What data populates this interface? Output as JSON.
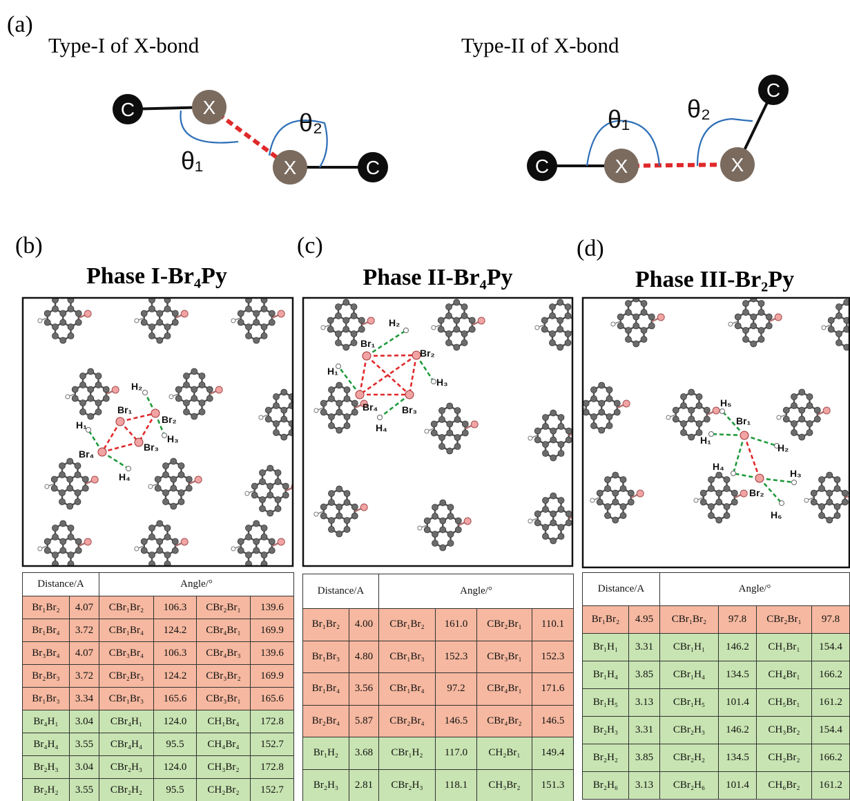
{
  "panel_a": {
    "label": "(a)",
    "type_i": {
      "title": "Type-I of X-bond",
      "atoms": [
        "C",
        "X",
        "X",
        "C"
      ],
      "angles": [
        "θ₁",
        "θ₂"
      ]
    },
    "type_ii": {
      "title": "Type-II of X-bond",
      "atoms": [
        "C",
        "X",
        "X",
        "C"
      ],
      "angles": [
        "θ₁",
        "θ₂"
      ]
    }
  },
  "panels": [
    {
      "label": "(b)",
      "title": "Phase I-Br₄Py",
      "atoms": [
        "H₂",
        "Br₁",
        "Br₂",
        "H₁",
        "H₃",
        "Br₃",
        "Br₄",
        "H₄"
      ],
      "table": {
        "headers": [
          "Distance/A",
          "Angle/°"
        ],
        "rows": [
          {
            "color": "#f6b8a0",
            "cells": [
              "Br₁Br₂",
              "4.07",
              "CBr₁Br₂",
              "106.3",
              "CBr₂Br₁",
              "139.6"
            ]
          },
          {
            "color": "#f6b8a0",
            "cells": [
              "Br₁Br₄",
              "3.72",
              "CBr₁Br₄",
              "124.2",
              "CBr₄Br₁",
              "169.9"
            ]
          },
          {
            "color": "#f6b8a0",
            "cells": [
              "Br₃Br₄",
              "4.07",
              "CBr₃Br₄",
              "106.3",
              "CBr₄Br₃",
              "139.6"
            ]
          },
          {
            "color": "#f6b8a0",
            "cells": [
              "Br₂Br₃",
              "3.72",
              "CBr₂Br₃",
              "124.2",
              "CBr₃Br₂",
              "169.9"
            ]
          },
          {
            "color": "#f6b8a0",
            "cells": [
              "Br₁Br₃",
              "3.34",
              "CBr₁Br₃",
              "165.6",
              "CBr₃Br₁",
              "165.6"
            ]
          },
          {
            "color": "#c8e4b2",
            "cells": [
              "Br₄H₁",
              "3.04",
              "CBr₄H₁",
              "124.0",
              "CH₁Br₄",
              "172.8"
            ]
          },
          {
            "color": "#c8e4b2",
            "cells": [
              "Br₄H₄",
              "3.55",
              "CBr₄H₄",
              "95.5",
              "CH₄Br₄",
              "152.7"
            ]
          },
          {
            "color": "#c8e4b2",
            "cells": [
              "Br₂H₃",
              "3.04",
              "CBr₂H₃",
              "124.0",
              "CH₃Br₂",
              "172.8"
            ]
          },
          {
            "color": "#c8e4b2",
            "cells": [
              "Br₂H₂",
              "3.55",
              "CBr₂H₂",
              "95.5",
              "CH₂Br₂",
              "152.7"
            ]
          }
        ]
      }
    },
    {
      "label": "(c)",
      "title": "Phase II-Br₄Py",
      "atoms": [
        "H₂",
        "Br₁",
        "Br₂",
        "H₁",
        "H₃",
        "Br₄",
        "Br₃",
        "H₄"
      ],
      "table": {
        "headers": [
          "Distance/A",
          "Angle/°"
        ],
        "rows": [
          {
            "color": "#f6b8a0",
            "cells": [
              "Br₁Br₂",
              "4.00",
              "CBr₁Br₂",
              "161.0",
              "CBr₂Br₁",
              "110.1"
            ]
          },
          {
            "color": "#f6b8a0",
            "cells": [
              "Br₁Br₃",
              "4.80",
              "CBr₁Br₃",
              "152.3",
              "CBr₃Br₁",
              "152.3"
            ]
          },
          {
            "color": "#f6b8a0",
            "cells": [
              "Br₁Br₄",
              "3.56",
              "CBr₁Br₄",
              "97.2",
              "CBr₄Br₁",
              "171.6"
            ]
          },
          {
            "color": "#f6b8a0",
            "cells": [
              "Br₂Br₄",
              "5.87",
              "CBr₂Br₄",
              "146.5",
              "CBr₄Br₂",
              "146.5"
            ]
          },
          {
            "color": "#c8e4b2",
            "cells": [
              "Br₁H₂",
              "3.68",
              "CBr₁H₂",
              "117.0",
              "CH₂Br₁",
              "149.4"
            ]
          },
          {
            "color": "#c8e4b2",
            "cells": [
              "Br₂H₃",
              "2.81",
              "CBr₂H₃",
              "118.1",
              "CH₃Br₂",
              "151.3"
            ]
          }
        ]
      }
    },
    {
      "label": "(d)",
      "title": "Phase III-Br₂Py",
      "atoms": [
        "H₅",
        "Br₁",
        "H₁",
        "H₂",
        "H₄",
        "H₃",
        "Br₂",
        "H₆"
      ],
      "table": {
        "headers": [
          "Distance/A",
          "Angle/°"
        ],
        "rows": [
          {
            "color": "#f6b8a0",
            "cells": [
              "Br₁Br₂",
              "4.95",
              "CBr₁Br₂",
              "97.8",
              "CBr₂Br₁",
              "97.8"
            ]
          },
          {
            "color": "#c8e4b2",
            "cells": [
              "Br₁H₁",
              "3.31",
              "CBr₁H₁",
              "146.2",
              "CH₁Br₁",
              "154.4"
            ]
          },
          {
            "color": "#c8e4b2",
            "cells": [
              "Br₁H₄",
              "3.85",
              "CBr₁H₄",
              "134.5",
              "CH₄Br₁",
              "166.2"
            ]
          },
          {
            "color": "#c8e4b2",
            "cells": [
              "Br₁H₅",
              "3.13",
              "CBr₁H₅",
              "101.4",
              "CH₅Br₁",
              "161.2"
            ]
          },
          {
            "color": "#c8e4b2",
            "cells": [
              "Br₂H₃",
              "3.31",
              "CBr₂H₃",
              "146.2",
              "CH₃Br₂",
              "154.4"
            ]
          },
          {
            "color": "#c8e4b2",
            "cells": [
              "Br₂H₂",
              "3.85",
              "CBr₂H₂",
              "134.5",
              "CH₂Br₂",
              "166.2"
            ]
          },
          {
            "color": "#c8e4b2",
            "cells": [
              "Br₂H₆",
              "3.13",
              "CBr₂H₆",
              "101.4",
              "CH₆Br₂",
              "161.2"
            ]
          }
        ]
      }
    }
  ]
}
